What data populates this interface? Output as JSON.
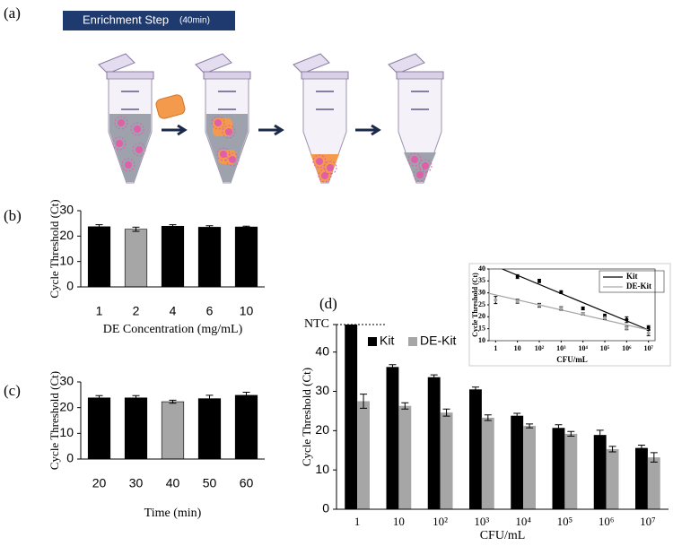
{
  "figure": {
    "panel_labels": [
      "(a)",
      "(b)",
      "(c)",
      "(d)"
    ],
    "step_title": "Enrichment Step",
    "step_time": "(40min)"
  },
  "chart_data": [
    {
      "type": "bar",
      "categories": [
        "1",
        "2",
        "4",
        "6",
        "10"
      ],
      "values": [
        23.7,
        22.7,
        23.9,
        23.5,
        23.6
      ],
      "errors": [
        0.8,
        0.8,
        0.6,
        0.6,
        0.3
      ],
      "colors": [
        "#000000",
        "#a6a6a6",
        "#000000",
        "#000000",
        "#000000"
      ],
      "ylim": [
        0,
        30
      ],
      "yticks": [
        0,
        10,
        20,
        30
      ],
      "xlabel": "DE Concentration  (mg/mL)",
      "ylabel": "Cycle Threshold (Ct)"
    },
    {
      "type": "bar",
      "categories": [
        "20",
        "30",
        "40",
        "50",
        "60"
      ],
      "values": [
        23.8,
        23.8,
        22.3,
        23.5,
        24.8
      ],
      "errors": [
        0.9,
        0.9,
        0.6,
        1.3,
        1.2
      ],
      "colors": [
        "#000000",
        "#000000",
        "#a6a6a6",
        "#000000",
        "#000000"
      ],
      "ylim": [
        0,
        30
      ],
      "yticks": [
        0,
        10,
        20,
        30
      ],
      "xlabel": "Time  (min)",
      "ylabel": "Cycle Threshold (Ct)"
    },
    {
      "type": "grouped_bar",
      "categories": [
        "1",
        "10",
        "10²",
        "10³",
        "10⁴",
        "10⁵",
        "10⁶",
        "10⁷"
      ],
      "series": [
        {
          "name": "Kit",
          "color": "#000000",
          "values": [
            47,
            36.2,
            33.6,
            30.5,
            23.8,
            20.7,
            18.9,
            15.6
          ],
          "errors": [
            null,
            0.6,
            0.6,
            0.6,
            0.6,
            0.8,
            1.2,
            0.7
          ]
        },
        {
          "name": "DE-Kit",
          "color": "#a6a6a6",
          "values": [
            27.5,
            26.3,
            24.6,
            23.3,
            21.2,
            19.2,
            15.3,
            13.2
          ],
          "errors": [
            1.8,
            0.8,
            0.9,
            0.7,
            0.5,
            0.6,
            0.7,
            1.2
          ]
        }
      ],
      "ylim": [
        0,
        47
      ],
      "yticks": [
        0,
        10,
        20,
        30,
        40,
        {
          "value": 47,
          "label": "NTC"
        }
      ],
      "xlabel": "CFU/mL",
      "ylabel": "Cycle Threshold (Ct)"
    },
    {
      "type": "scatter",
      "log_x": true,
      "x": [
        1,
        10,
        100,
        1000,
        10000,
        100000,
        1000000,
        10000000
      ],
      "series": [
        {
          "name": "Kit",
          "color": "#000000",
          "values": [
            null,
            36.8,
            35,
            30.3,
            23.5,
            20.3,
            18.8,
            15.5
          ],
          "errors": [
            null,
            0.8,
            0.7,
            0.6,
            0.6,
            0.8,
            1.2,
            0.8
          ],
          "trendline": {
            "x": [
              2,
              10000000
            ],
            "y": [
              40,
              14.5
            ]
          }
        },
        {
          "name": "DE-Kit",
          "color": "#a6a6a6",
          "values": [
            27,
            26.5,
            24.8,
            23.5,
            21.2,
            19.5,
            15.3,
            13.2
          ],
          "errors": [
            1.5,
            0.8,
            0.8,
            0.7,
            0.5,
            0.6,
            0.7,
            1.1
          ],
          "trendline": {
            "x": [
              0.5,
              10000000
            ],
            "y": [
              29.8,
              14.5
            ]
          }
        }
      ],
      "xlim": [
        0.5,
        20000000
      ],
      "ylim": [
        10,
        40
      ],
      "xticks": [
        1,
        10,
        {
          "value": 100,
          "label": "10²"
        },
        {
          "value": 1000,
          "label": "10³"
        },
        {
          "value": 10000,
          "label": "10⁴"
        },
        {
          "value": 100000,
          "label": "10⁵"
        },
        {
          "value": 1000000,
          "label": "10⁶"
        },
        {
          "value": 10000000,
          "label": "10⁷"
        }
      ],
      "yticks": [
        10,
        15,
        20,
        25,
        30,
        35,
        40
      ],
      "xlabel": "CFU/mL",
      "ylabel": "Cycle Threshold (Ct)"
    }
  ]
}
